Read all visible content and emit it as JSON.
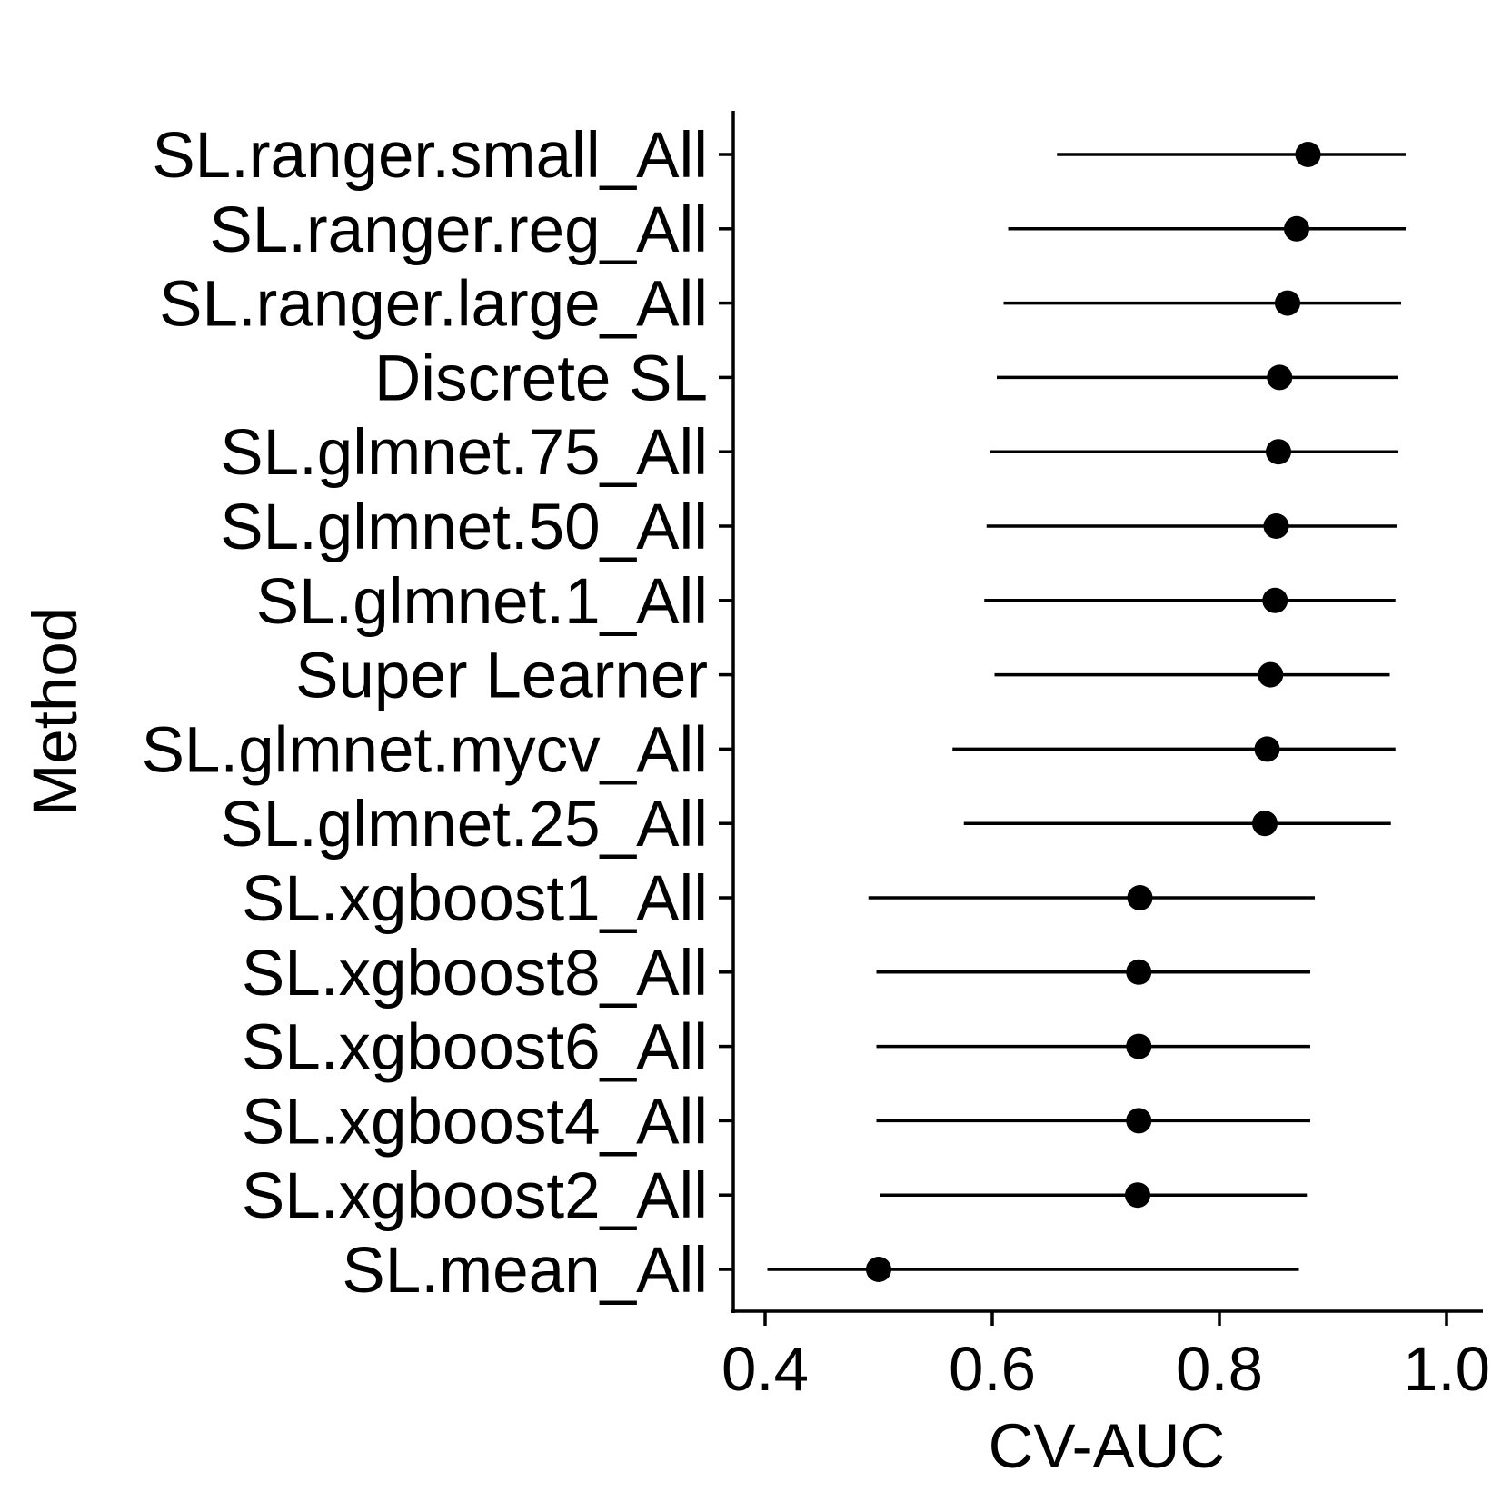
{
  "chart_data": {
    "type": "scatter",
    "subtype": "forest-plot",
    "title": "",
    "xlabel": "CV-AUC",
    "ylabel": "Method",
    "xlim": [
      0.37,
      1.03
    ],
    "xticks": [
      0.4,
      0.6,
      0.8,
      1.0
    ],
    "xtick_labels": [
      "0.4",
      "0.6",
      "0.8",
      "1.0"
    ],
    "grid": false,
    "legend": "none",
    "point_color": "#000000",
    "rows": [
      {
        "label": "SL.ranger.small_All",
        "estimate": 0.878,
        "lower": 0.657,
        "upper": 0.964
      },
      {
        "label": "SL.ranger.reg_All",
        "estimate": 0.868,
        "lower": 0.614,
        "upper": 0.964
      },
      {
        "label": "SL.ranger.large_All",
        "estimate": 0.86,
        "lower": 0.61,
        "upper": 0.96
      },
      {
        "label": "Discrete SL",
        "estimate": 0.853,
        "lower": 0.604,
        "upper": 0.957
      },
      {
        "label": "SL.glmnet.75_All",
        "estimate": 0.852,
        "lower": 0.598,
        "upper": 0.957
      },
      {
        "label": "SL.glmnet.50_All",
        "estimate": 0.85,
        "lower": 0.595,
        "upper": 0.956
      },
      {
        "label": "SL.glmnet.1_All",
        "estimate": 0.849,
        "lower": 0.593,
        "upper": 0.955
      },
      {
        "label": "Super Learner",
        "estimate": 0.845,
        "lower": 0.602,
        "upper": 0.95
      },
      {
        "label": "SL.glmnet.mycv_All",
        "estimate": 0.842,
        "lower": 0.565,
        "upper": 0.955
      },
      {
        "label": "SL.glmnet.25_All",
        "estimate": 0.84,
        "lower": 0.575,
        "upper": 0.951
      },
      {
        "label": "SL.xgboost1_All",
        "estimate": 0.73,
        "lower": 0.491,
        "upper": 0.884
      },
      {
        "label": "SL.xgboost8_All",
        "estimate": 0.729,
        "lower": 0.498,
        "upper": 0.88
      },
      {
        "label": "SL.xgboost6_All",
        "estimate": 0.729,
        "lower": 0.498,
        "upper": 0.88
      },
      {
        "label": "SL.xgboost4_All",
        "estimate": 0.729,
        "lower": 0.498,
        "upper": 0.88
      },
      {
        "label": "SL.xgboost2_All",
        "estimate": 0.728,
        "lower": 0.501,
        "upper": 0.877
      },
      {
        "label": "SL.mean_All",
        "estimate": 0.5,
        "lower": 0.402,
        "upper": 0.87
      }
    ]
  }
}
